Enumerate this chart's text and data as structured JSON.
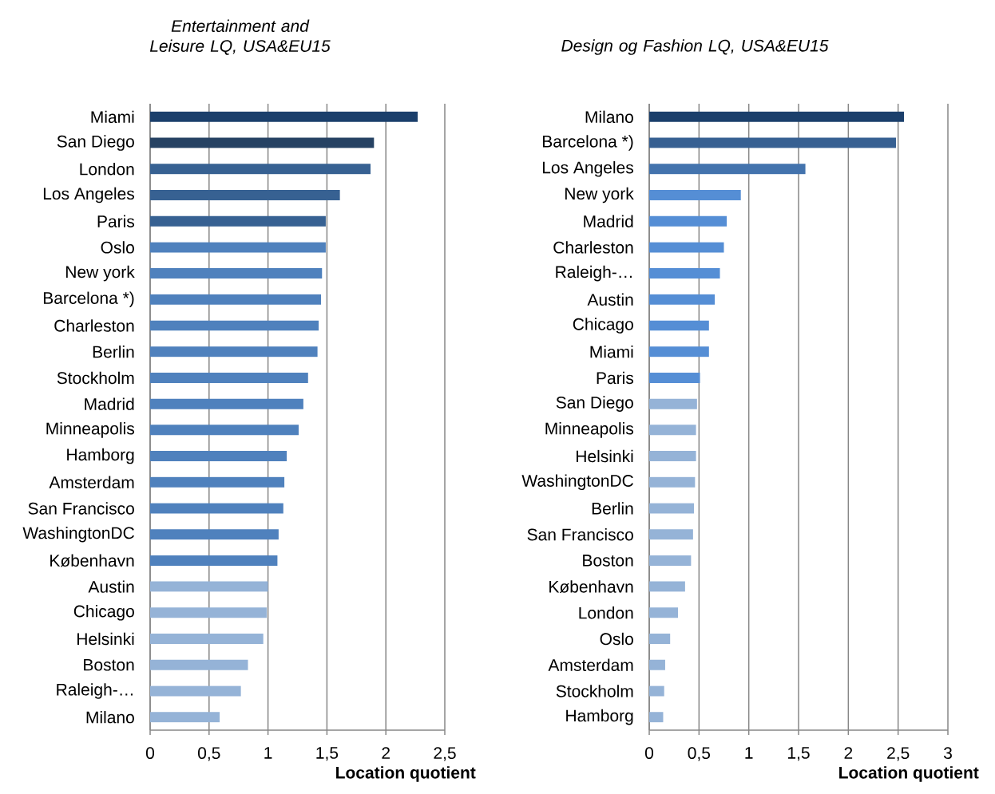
{
  "chart_data": [
    {
      "type": "bar",
      "orientation": "horizontal",
      "title": "Entertainment and Leisure LQ, USA&EU15",
      "xlabel": "Location quotient",
      "categories": [
        "Miami",
        "San Diego",
        "London",
        "Los Angeles",
        "Paris",
        "Oslo",
        "New york",
        "Barcelona *)",
        "Charleston",
        "Berlin",
        "Stockholm",
        "Madrid",
        "Minneapolis",
        "Hamborg",
        "Amsterdam",
        "San Francisco",
        "WashingtonDC",
        "København",
        "Austin",
        "Chicago",
        "Helsinki",
        "Boston",
        "Raleigh-…",
        "Milano"
      ],
      "values": [
        2.27,
        1.9,
        1.87,
        1.61,
        1.49,
        1.49,
        1.46,
        1.45,
        1.43,
        1.42,
        1.34,
        1.3,
        1.26,
        1.16,
        1.14,
        1.13,
        1.09,
        1.08,
        1.0,
        0.99,
        0.96,
        0.83,
        0.77,
        0.59
      ],
      "colors": [
        "#1b3f6b",
        "#264263",
        "#376192",
        "#376192",
        "#376192",
        "#4f81bd",
        "#4f81bd",
        "#4f81bd",
        "#4f81bd",
        "#4f81bd",
        "#4f81bd",
        "#4f81bd",
        "#4f81bd",
        "#4f81bd",
        "#4f81bd",
        "#4f81bd",
        "#4f81bd",
        "#4f81bd",
        "#95b3d7",
        "#95b3d7",
        "#95b3d7",
        "#95b3d7",
        "#95b3d7",
        "#95b3d7"
      ],
      "xlim": [
        0,
        2.5
      ],
      "xticks": [
        0,
        {
          "value": 0.5,
          "label": "0,5"
        },
        1,
        {
          "value": 1.5,
          "label": "1,5"
        },
        2,
        {
          "value": 2.5,
          "label": "2,5"
        }
      ],
      "grid": "x"
    },
    {
      "type": "bar",
      "orientation": "horizontal",
      "title": "Design og Fashion LQ, USA&EU15",
      "xlabel": "Location quotient",
      "categories": [
        "Milano",
        "Barcelona *)",
        "Los Angeles",
        "New york",
        "Madrid",
        "Charleston",
        "Raleigh-…",
        "Austin",
        "Chicago",
        "Miami",
        "Paris",
        "San Diego",
        "Minneapolis",
        "Helsinki",
        "WashingtonDC",
        "Berlin",
        "San Francisco",
        "Boston",
        "København",
        "London",
        "Oslo",
        "Amsterdam",
        "Stockholm",
        "Hamborg"
      ],
      "values": [
        2.56,
        2.48,
        1.57,
        0.92,
        0.78,
        0.75,
        0.71,
        0.66,
        0.6,
        0.6,
        0.51,
        0.48,
        0.47,
        0.47,
        0.46,
        0.45,
        0.44,
        0.42,
        0.36,
        0.29,
        0.21,
        0.16,
        0.15,
        0.14
      ],
      "colors": [
        "#1b3f6b",
        "#376092",
        "#4373ad",
        "#558ed5",
        "#558ed5",
        "#558ed5",
        "#558ed5",
        "#558ed5",
        "#558ed5",
        "#558ed5",
        "#558ed5",
        "#95b3d7",
        "#95b3d7",
        "#95b3d7",
        "#95b3d7",
        "#95b3d7",
        "#95b3d7",
        "#95b3d7",
        "#95b3d7",
        "#95b3d7",
        "#95b3d7",
        "#95b3d7",
        "#95b3d7",
        "#95b3d7"
      ],
      "xlim": [
        0,
        3
      ],
      "xticks": [
        0,
        {
          "value": 0.5,
          "label": "0,5"
        },
        1,
        {
          "value": 1.5,
          "label": "1,5"
        },
        2,
        {
          "value": 2.5,
          "label": "2,5"
        },
        3
      ],
      "grid": "x"
    }
  ]
}
